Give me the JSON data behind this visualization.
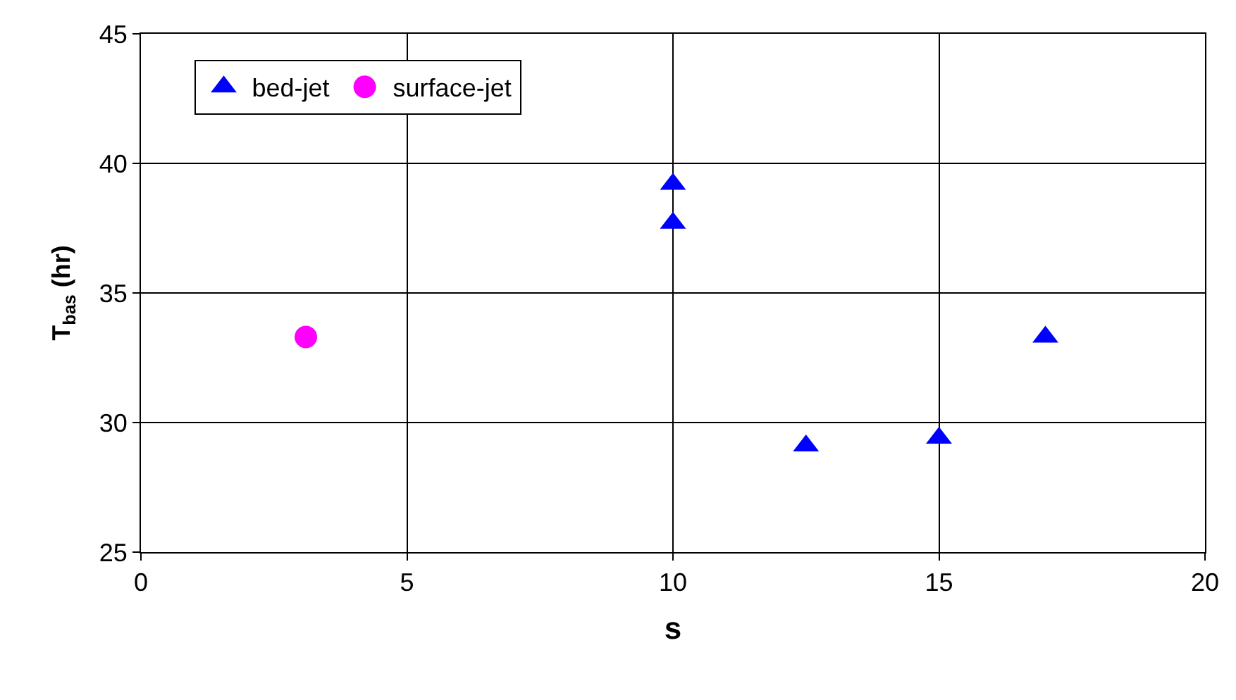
{
  "chart_data": {
    "type": "scatter",
    "xlabel": "s",
    "ylabel": "T$_{bas}$ (hr)",
    "xlim": [
      0,
      20
    ],
    "xticks": [
      0,
      5,
      10,
      15,
      20
    ],
    "ylim": [
      25,
      45
    ],
    "yticks": [
      25,
      30,
      35,
      40,
      45
    ],
    "grid": true,
    "legend": "top left",
    "series": [
      {
        "name": "bed-jet",
        "color": "#0000ff",
        "marker": "triangle",
        "x": [
          10,
          10,
          12.5,
          15,
          17
        ],
        "values": [
          39.2,
          37.7,
          29.1,
          29.4,
          33.3
        ]
      },
      {
        "name": "surface-jet",
        "color": "#ff00ff",
        "marker": "circle",
        "x": [
          3.1
        ],
        "values": [
          33.3
        ]
      }
    ]
  }
}
